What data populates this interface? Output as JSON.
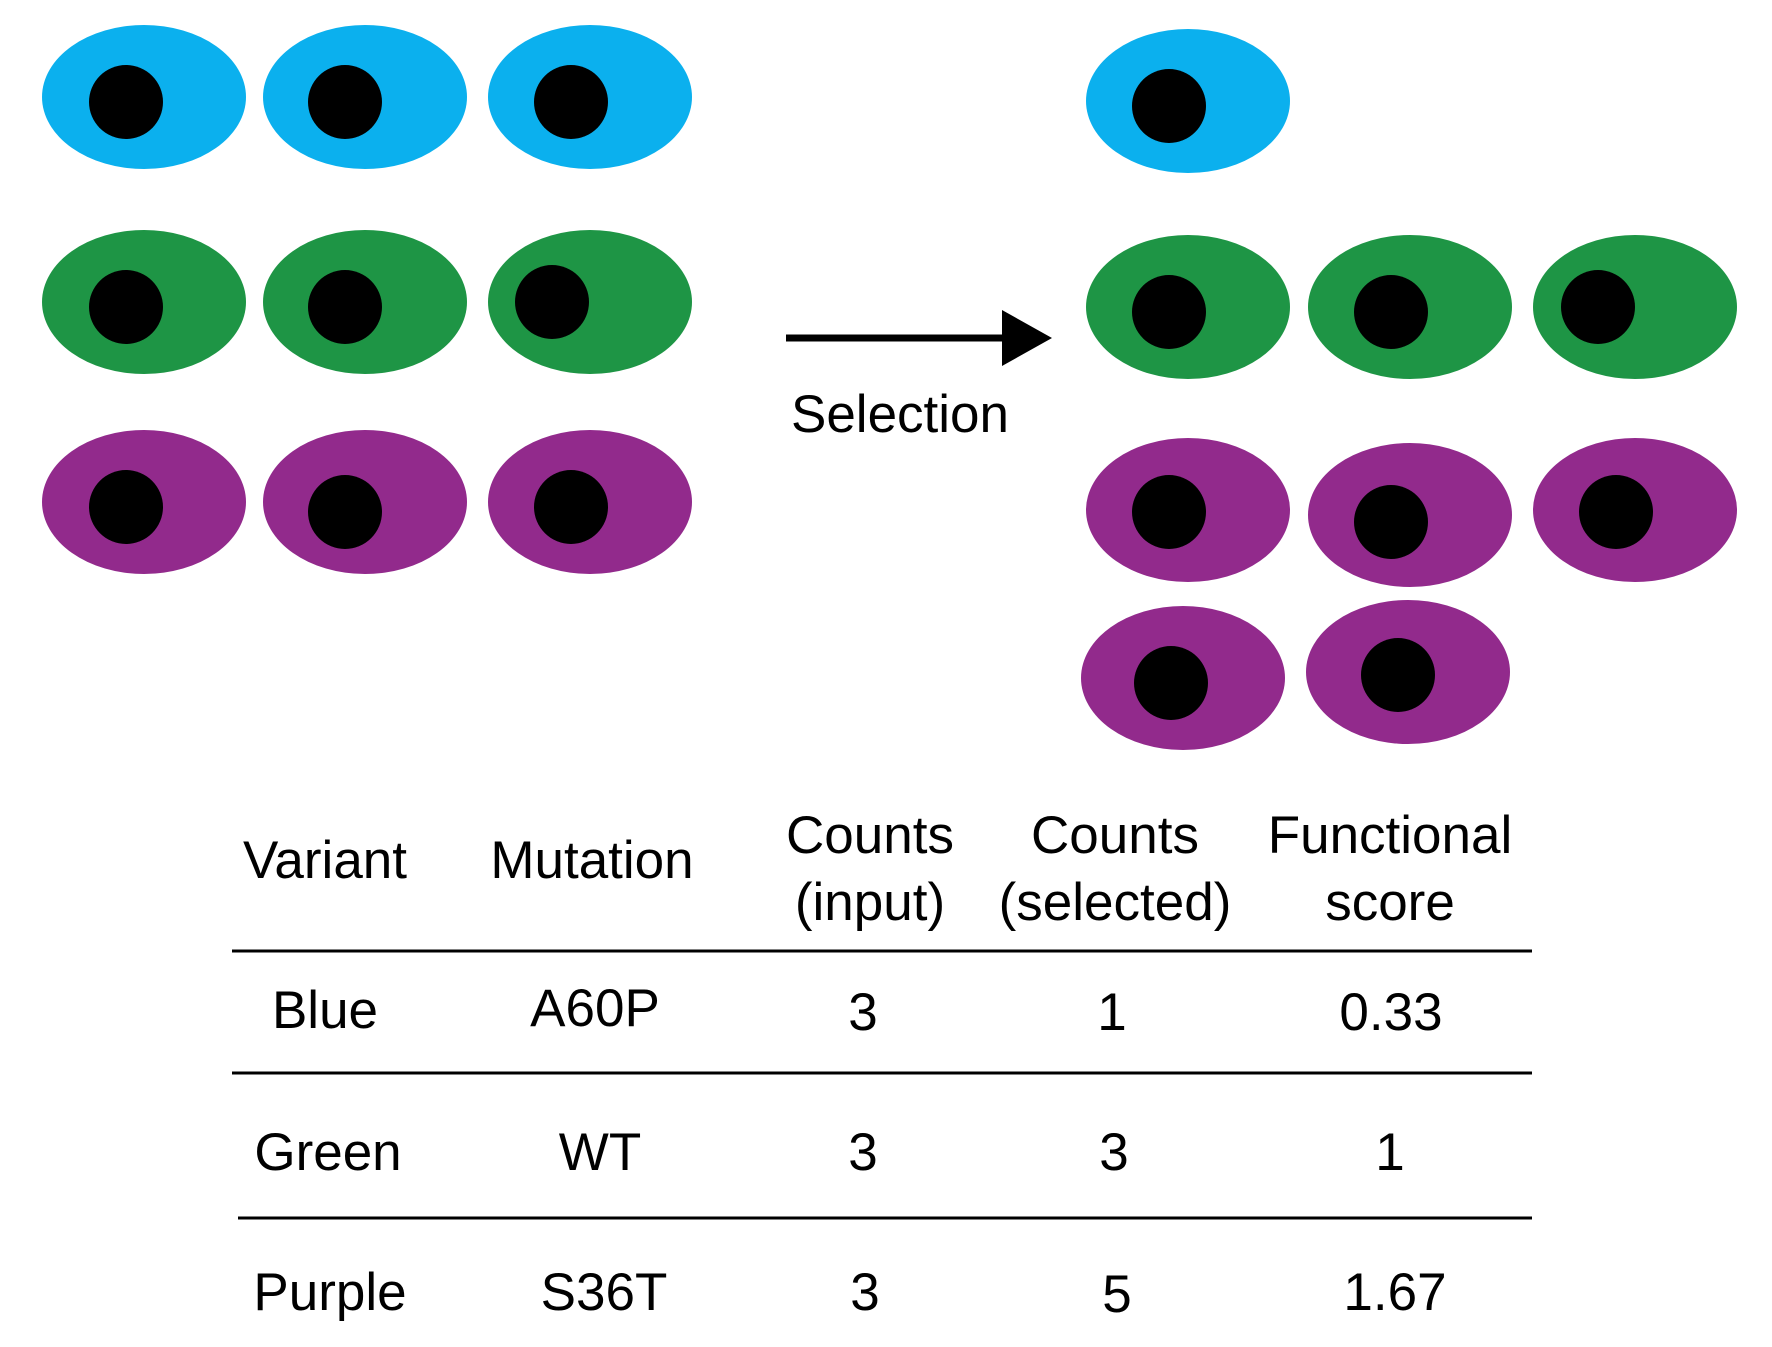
{
  "colors": {
    "blue": "#0BB0EE",
    "green": "#1E9545",
    "purple": "#922A8C",
    "nucleus": "#000000",
    "line": "#000000"
  },
  "selection_label": "Selection",
  "cells": {
    "input": [
      {
        "variant": "Blue",
        "count": 3
      },
      {
        "variant": "Green",
        "count": 3
      },
      {
        "variant": "Purple",
        "count": 3
      }
    ],
    "selected": [
      {
        "variant": "Blue",
        "count": 1
      },
      {
        "variant": "Green",
        "count": 3
      },
      {
        "variant": "Purple",
        "count": 5
      }
    ]
  },
  "table": {
    "headers": {
      "variant": "Variant",
      "mutation": "Mutation",
      "counts_input": [
        "Counts",
        "(input)"
      ],
      "counts_selected": [
        "Counts",
        "(selected)"
      ],
      "functional_score": [
        "Functional",
        "score"
      ]
    },
    "rows": [
      {
        "variant": "Blue",
        "mutation": "A60P",
        "counts_input": "3",
        "counts_selected": "1",
        "functional_score": "0.33",
        "color": "#0BB0EE"
      },
      {
        "variant": "Green",
        "mutation": "WT",
        "counts_input": "3",
        "counts_selected": "3",
        "functional_score": "1",
        "color": "#1E9545"
      },
      {
        "variant": "Purple",
        "mutation": "S36T",
        "counts_input": "3",
        "counts_selected": "5",
        "functional_score": "1.67",
        "color": "#922A8C"
      }
    ]
  }
}
